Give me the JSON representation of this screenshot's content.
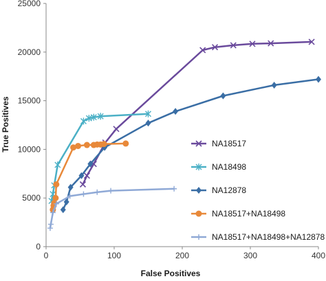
{
  "chart_data": {
    "type": "line",
    "xlabel": "False Positives",
    "ylabel": "True Positives",
    "xlim": [
      0,
      400
    ],
    "ylim": [
      0,
      25000
    ],
    "x_ticks": [
      0,
      100,
      200,
      300,
      400
    ],
    "y_ticks": [
      0,
      5000,
      10000,
      15000,
      20000,
      25000
    ],
    "grid": false,
    "legend_position": "right",
    "series": [
      {
        "name": "NA18517",
        "color": "#6a4a9c",
        "marker": "x",
        "x": [
          54,
          60,
          70,
          87,
          103,
          230,
          248,
          275,
          303,
          330,
          390
        ],
        "y": [
          6400,
          7300,
          8500,
          10700,
          12100,
          20200,
          20500,
          20700,
          20850,
          20900,
          21050
        ]
      },
      {
        "name": "NA18498",
        "color": "#4bb0c6",
        "marker": "star",
        "x": [
          8,
          10,
          12,
          17,
          55,
          63,
          70,
          80,
          150
        ],
        "y": [
          4700,
          5400,
          6300,
          8400,
          12900,
          13200,
          13300,
          13400,
          13650
        ]
      },
      {
        "name": "NA12878",
        "color": "#3a6ea5",
        "marker": "diamond",
        "x": [
          25,
          30,
          36,
          52,
          65,
          86,
          150,
          190,
          260,
          335,
          400
        ],
        "y": [
          3800,
          4600,
          6100,
          7300,
          8500,
          10200,
          12700,
          13900,
          15500,
          16600,
          17200
        ]
      },
      {
        "name": "NA18517+NA18498",
        "color": "#e8893a",
        "marker": "circle",
        "x": [
          10,
          11,
          12,
          14,
          15,
          40,
          47,
          60,
          70,
          75,
          80,
          85,
          117
        ],
        "y": [
          3800,
          4200,
          4500,
          5000,
          6400,
          10200,
          10350,
          10450,
          10450,
          10500,
          10500,
          10550,
          10600
        ]
      },
      {
        "name": "NA18517+NA18498+NA12878",
        "color": "#8fa9d6",
        "marker": "plus",
        "x": [
          6,
          7,
          10,
          15,
          35,
          55,
          75,
          95,
          188
        ],
        "y": [
          1900,
          2300,
          3500,
          4400,
          5200,
          5400,
          5600,
          5750,
          5950
        ]
      }
    ]
  }
}
